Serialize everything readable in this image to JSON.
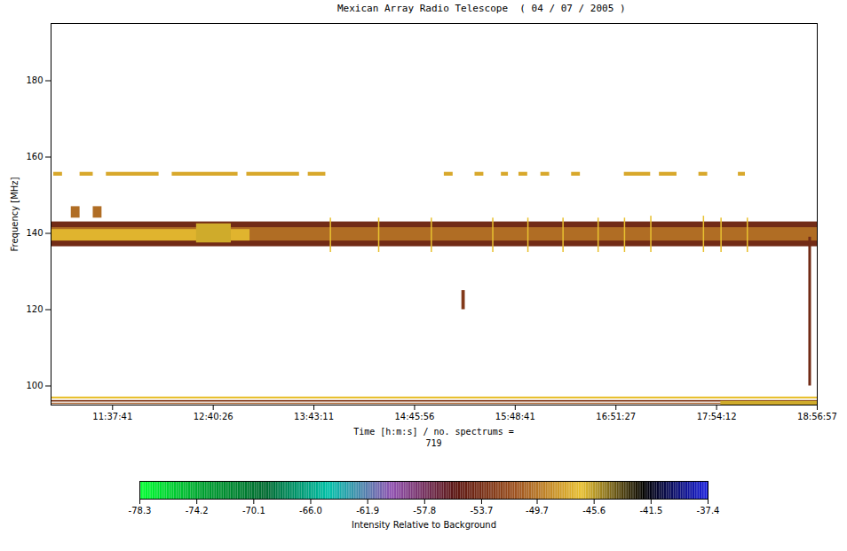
{
  "chart_data": {
    "type": "heatmap",
    "title": "Mexican Array Radio Telescope  ( 04 / 07 / 2005 )",
    "x_label": "Time [h:m:s] / no. spectrums =",
    "spectra_count": 719,
    "y_label": "Frequency [MHz]",
    "xlim": [
      39560,
      68217
    ],
    "xticks": [
      {
        "value": 41861,
        "label": "11:37:41"
      },
      {
        "value": 45626,
        "label": "12:40:26"
      },
      {
        "value": 49391,
        "label": "13:43:11"
      },
      {
        "value": 53156,
        "label": "14:45:56"
      },
      {
        "value": 56921,
        "label": "15:48:41"
      },
      {
        "value": 60687,
        "label": "16:51:27"
      },
      {
        "value": 64452,
        "label": "17:54:12"
      },
      {
        "value": 68217,
        "label": "18:56:57"
      }
    ],
    "ylim": [
      95,
      195
    ],
    "yticks": [
      100,
      120,
      140,
      160,
      180
    ],
    "cells": [
      [
        39560,
        68217,
        136.5,
        143,
        -54
      ],
      [
        39560,
        68217,
        138,
        141.5,
        -50
      ],
      [
        39560,
        47000,
        138,
        141,
        -47
      ],
      [
        45000,
        46300,
        137.5,
        142.5,
        -46
      ],
      [
        50000,
        50050,
        135,
        144,
        -46.5
      ],
      [
        51805,
        51855,
        135,
        144,
        -46.5
      ],
      [
        53775,
        53825,
        135,
        144,
        -46.5
      ],
      [
        56073,
        56123,
        135,
        144,
        -46.5
      ],
      [
        57386,
        57436,
        135,
        144,
        -46.5
      ],
      [
        58700,
        58750,
        135,
        144,
        -46.5
      ],
      [
        60013,
        60063,
        135,
        144,
        -46.5
      ],
      [
        61000,
        61050,
        135,
        144,
        -46.5
      ],
      [
        61984,
        62034,
        135,
        144.5,
        -46.5
      ],
      [
        63953,
        64003,
        135,
        144.5,
        -46.5
      ],
      [
        64610,
        64660,
        135,
        144,
        -46.5
      ],
      [
        65594,
        65644,
        135,
        144,
        -46.5
      ],
      [
        39659,
        39987,
        155,
        156,
        -47.5
      ],
      [
        40643,
        41136,
        155,
        156,
        -47.5
      ],
      [
        41628,
        43598,
        155,
        156,
        -47.5
      ],
      [
        44090,
        46552,
        155,
        156,
        -47.5
      ],
      [
        46881,
        48850,
        155,
        156,
        -47.5
      ],
      [
        49178,
        49835,
        155,
        156,
        -47.5
      ],
      [
        54267,
        54596,
        155,
        156,
        -47.5
      ],
      [
        55416,
        55745,
        155,
        156,
        -47.5
      ],
      [
        56401,
        56664,
        155,
        156,
        -47.5
      ],
      [
        57058,
        57386,
        155,
        156,
        -47.5
      ],
      [
        57879,
        58207,
        155,
        156,
        -47.5
      ],
      [
        59028,
        59356,
        155,
        156,
        -47.5
      ],
      [
        61000,
        61984,
        155,
        156,
        -47.5
      ],
      [
        62312,
        62969,
        155,
        156,
        -47.5
      ],
      [
        63789,
        64118,
        155,
        156,
        -47.5
      ],
      [
        65265,
        65527,
        155,
        156,
        -47.5
      ],
      [
        40315,
        40643,
        144,
        147,
        -50
      ],
      [
        41136,
        41464,
        144,
        147,
        -50
      ],
      [
        54924,
        55050,
        120,
        125,
        -53
      ],
      [
        67900,
        68000,
        100,
        139,
        -54
      ],
      [
        39560,
        68217,
        96.6,
        97.1,
        -46.5
      ],
      [
        39560,
        68217,
        95.8,
        96.2,
        -53
      ],
      [
        39560,
        68217,
        95.2,
        95.5,
        -51
      ],
      [
        64610,
        68217,
        95,
        96,
        -46
      ]
    ],
    "colorbar": {
      "label": "Intensity Relative to Background",
      "range": [
        -78.3,
        -37.4
      ],
      "ticks": [
        -78.3,
        -74.2,
        -70.1,
        {
          "value": -66,
          "label": "-66.0"
        },
        -61.9,
        -57.8,
        -53.7,
        -49.7,
        -45.6,
        -41.5,
        -37.4
      ],
      "colors": [
        "#00ff30",
        "#00a030",
        "#006a30",
        "#00c0a8",
        "#9050b0",
        "#5a1410",
        "#a05520",
        "#e8c030",
        "#000000",
        "#1a20e0"
      ]
    }
  }
}
